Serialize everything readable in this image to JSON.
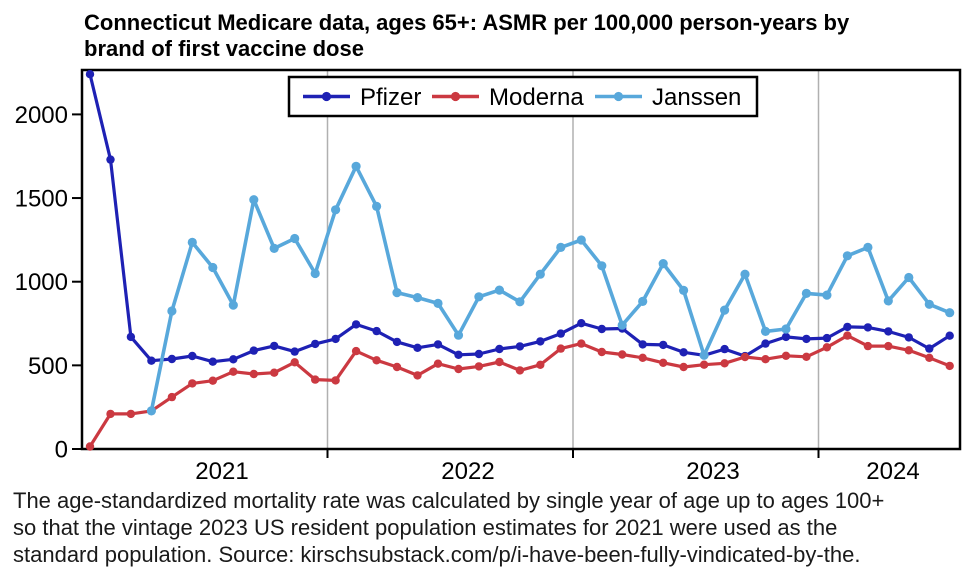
{
  "header": {
    "title_line1": "Connecticut Medicare data, ages 65+: ASMR per 100,000 person-years by",
    "title_line2": "brand of first vaccine dose"
  },
  "footer": {
    "line1": "The age-standardized mortality rate was calculated by single year of age up to ages 100+",
    "line2": "so that the vintage 2023 US resident population estimates for 2021 were used as the",
    "line3": "standard population. Source: kirschsubstack.com/p/i-have-been-fully-vindicated-by-the."
  },
  "chart_data": {
    "type": "line",
    "title": "Connecticut Medicare data, ages 65+: ASMR per 100,000 person-years by brand of first vaccine dose",
    "x": [
      "2021-01",
      "2021-02",
      "2021-03",
      "2021-04",
      "2021-05",
      "2021-06",
      "2021-07",
      "2021-08",
      "2021-09",
      "2021-10",
      "2021-11",
      "2021-12",
      "2022-01",
      "2022-02",
      "2022-03",
      "2022-04",
      "2022-05",
      "2022-06",
      "2022-07",
      "2022-08",
      "2022-09",
      "2022-10",
      "2022-11",
      "2022-12",
      "2023-01",
      "2023-02",
      "2023-03",
      "2023-04",
      "2023-05",
      "2023-06",
      "2023-07",
      "2023-08",
      "2023-09",
      "2023-10",
      "2023-11",
      "2023-12",
      "2024-01",
      "2024-02",
      "2024-03",
      "2024-04",
      "2024-05",
      "2024-06",
      "2024-07"
    ],
    "x_tick_labels": [
      "2021",
      "2022",
      "2023",
      "2024"
    ],
    "y_ticks": [
      0,
      500,
      1000,
      1500,
      2000
    ],
    "ylim": [
      0,
      2265
    ],
    "grid": "vertical lines at year boundaries",
    "legend_position": "top center inside plot",
    "series": [
      {
        "name": "Pfizer",
        "color": "#1e21b4",
        "values": [
          2240,
          1730,
          670,
          528,
          538,
          556,
          522,
          536,
          588,
          616,
          582,
          628,
          658,
          745,
          705,
          640,
          605,
          625,
          563,
          568,
          598,
          613,
          643,
          690,
          752,
          717,
          720,
          625,
          622,
          578,
          560,
          597,
          555,
          630,
          670,
          658,
          663,
          730,
          727,
          703,
          667,
          600,
          677
        ]
      },
      {
        "name": "Moderna",
        "color": "#cb3941",
        "values": [
          15,
          210,
          210,
          228,
          310,
          392,
          408,
          462,
          448,
          456,
          518,
          415,
          410,
          585,
          530,
          490,
          440,
          510,
          478,
          494,
          520,
          470,
          503,
          600,
          630,
          580,
          565,
          545,
          515,
          490,
          504,
          512,
          550,
          537,
          557,
          551,
          608,
          678,
          615,
          615,
          590,
          545,
          497
        ]
      },
      {
        "name": "Janssen",
        "color": "#58a8db",
        "values": [
          null,
          null,
          null,
          228,
          825,
          1235,
          1085,
          860,
          1490,
          1199,
          1258,
          1049,
          1430,
          1690,
          1450,
          935,
          905,
          870,
          680,
          910,
          950,
          880,
          1045,
          1205,
          1249,
          1095,
          740,
          882,
          1108,
          948,
          560,
          830,
          1045,
          703,
          717,
          930,
          920,
          1155,
          1205,
          885,
          1025,
          865,
          815
        ]
      }
    ],
    "colors": {
      "grid": "#b0b0b0",
      "axis": "#000000",
      "legend_border": "#000000"
    }
  }
}
